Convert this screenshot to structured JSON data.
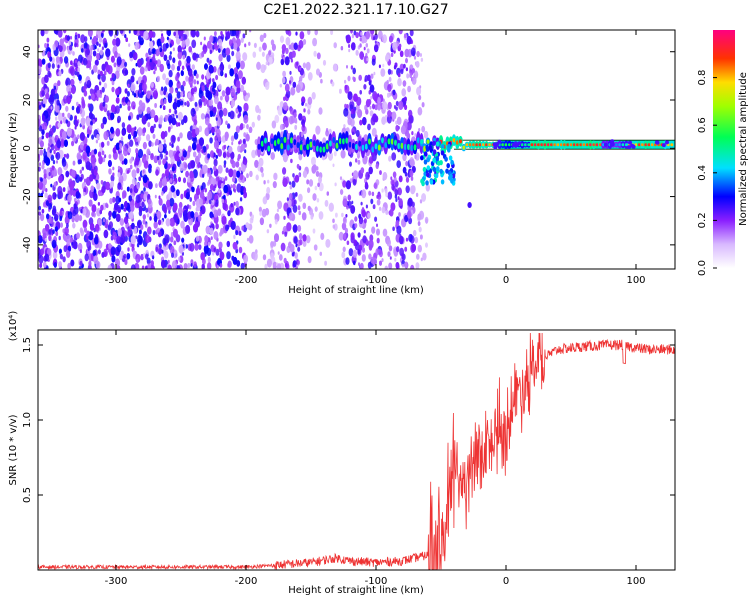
{
  "title": "C2E1.2022.321.17.10.G27",
  "spectrogram": {
    "type": "heatmap",
    "xlabel": "Height of straight line (km)",
    "ylabel": "Frequency (Hz)",
    "xlim": [
      -360,
      130
    ],
    "ylim": [
      -50,
      49
    ],
    "xticks": [
      -300,
      -200,
      -100,
      0,
      100
    ],
    "yticks": [
      -40,
      -20,
      0,
      20,
      40
    ],
    "noise_region": [
      -360,
      -60
    ],
    "dense_noise_region": [
      -360,
      -200
    ],
    "sparse_noise_columns": [
      [
        -172,
        -155
      ],
      [
        -125,
        -95
      ],
      [
        -90,
        -70
      ]
    ],
    "signal_band": {
      "center_hz": 1.5,
      "start_km": -190,
      "end_km": 130,
      "segments": [
        {
          "x0": -190,
          "x1": -100,
          "level": 0.45
        },
        {
          "x0": -100,
          "x1": -50,
          "level": 0.55
        },
        {
          "x0": -50,
          "x1": -5,
          "level": 0.85
        },
        {
          "x0": -5,
          "x1": 20,
          "level": 0.5
        },
        {
          "x0": 20,
          "x1": 75,
          "level": 0.88
        },
        {
          "x0": 75,
          "x1": 95,
          "level": 0.4
        },
        {
          "x0": 95,
          "x1": 130,
          "level": 0.85
        }
      ]
    },
    "colorbar": {
      "label": "Normalized spectral amplitude",
      "range": [
        0,
        1
      ],
      "ticks": [
        0.0,
        0.2,
        0.4,
        0.6,
        0.8
      ]
    }
  },
  "chart_data": {
    "type": "line",
    "xlabel": "Height of straight line (km)",
    "ylabel": "SNR (10 * v/v)",
    "yexp": "(x10⁴)",
    "xlim": [
      -360,
      130
    ],
    "ylim": [
      0,
      1.6
    ],
    "xticks": [
      -300,
      -200,
      -100,
      0,
      100
    ],
    "yticks": [
      0.5,
      1.0,
      1.5
    ],
    "series": [
      {
        "color": "#ee3333",
        "x": [
          -360,
          -300,
          -250,
          -200,
          -180,
          -150,
          -130,
          -120,
          -100,
          -80,
          -60,
          -50,
          -45,
          -40,
          -35,
          -30,
          -25,
          -20,
          -15,
          -10,
          -5,
          0,
          5,
          10,
          20,
          30,
          40,
          60,
          80,
          90,
          100,
          110,
          120,
          130
        ],
        "y": [
          0.02,
          0.02,
          0.02,
          0.02,
          0.03,
          0.05,
          0.08,
          0.06,
          0.05,
          0.06,
          0.1,
          0.15,
          0.35,
          0.7,
          0.6,
          0.55,
          0.7,
          0.75,
          0.8,
          0.85,
          0.8,
          0.95,
          1.1,
          1.2,
          1.32,
          1.42,
          1.47,
          1.49,
          1.5,
          1.5,
          1.48,
          1.47,
          1.47,
          1.47
        ]
      }
    ]
  }
}
